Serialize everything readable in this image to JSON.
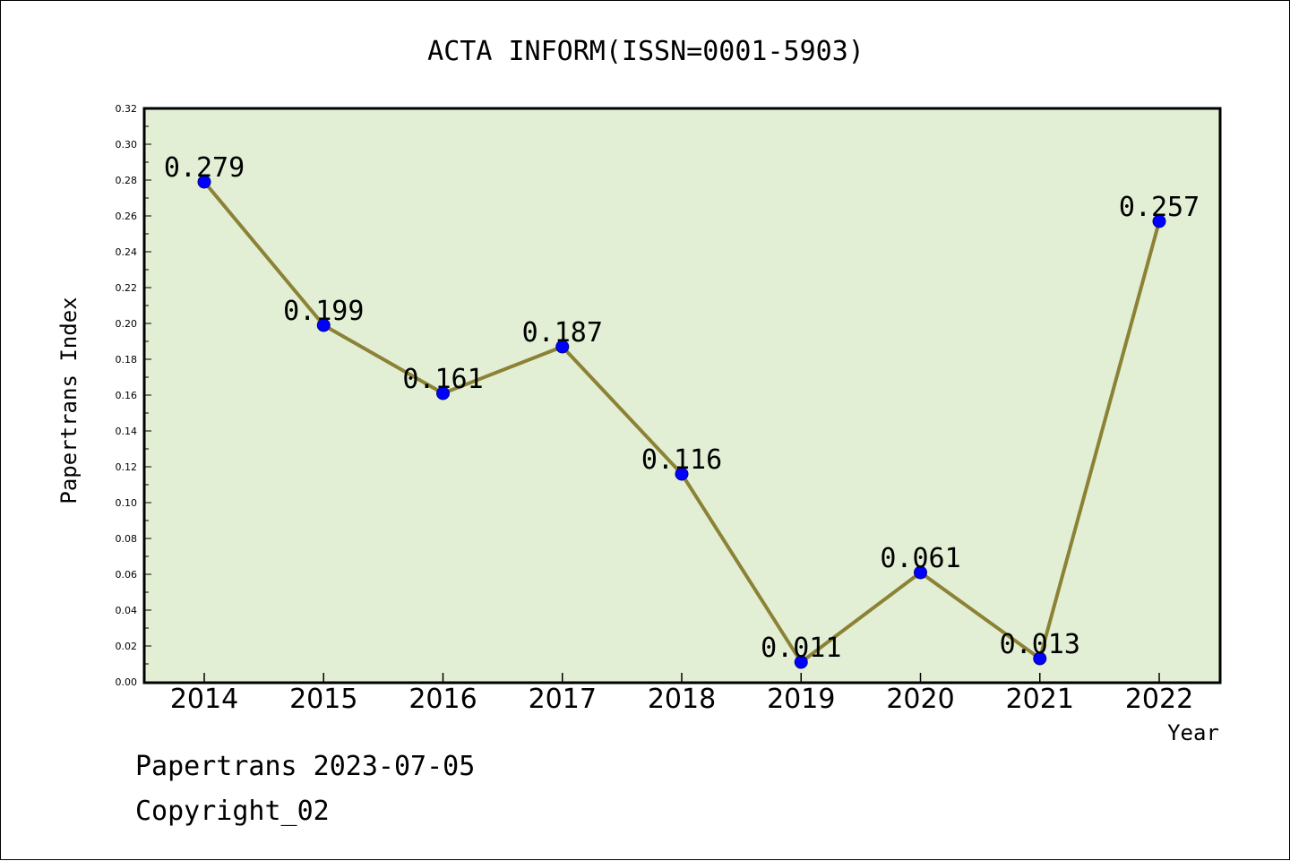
{
  "chart_data": {
    "type": "line",
    "title": "ACTA INFORM(ISSN=0001-5903)",
    "xlabel": "Year",
    "ylabel": "Papertrans Index",
    "categories": [
      "2014",
      "2015",
      "2016",
      "2017",
      "2018",
      "2019",
      "2020",
      "2021",
      "2022"
    ],
    "series": [
      {
        "values": [
          0.279,
          0.199,
          0.161,
          0.187,
          0.116,
          0.011,
          0.061,
          0.013,
          0.257
        ]
      }
    ],
    "data_labels": [
      "0.279",
      "0.199",
      "0.161",
      "0.187",
      "0.116",
      "0.011",
      "0.061",
      "0.013",
      "0.257"
    ],
    "ylim": [
      0,
      0.32
    ],
    "yticks": [
      "0.00",
      "0.02",
      "0.04",
      "0.06",
      "0.08",
      "0.10",
      "0.12",
      "0.14",
      "0.16",
      "0.18",
      "0.20",
      "0.22",
      "0.24",
      "0.26",
      "0.28",
      "0.30",
      "0.32"
    ],
    "grid": false,
    "line_color": "#8c8235",
    "marker_color": "#0000ff",
    "plot_background": "#e2efd5"
  },
  "footer": {
    "line1": "Papertrans 2023-07-05",
    "line2": "Copyright_02"
  }
}
